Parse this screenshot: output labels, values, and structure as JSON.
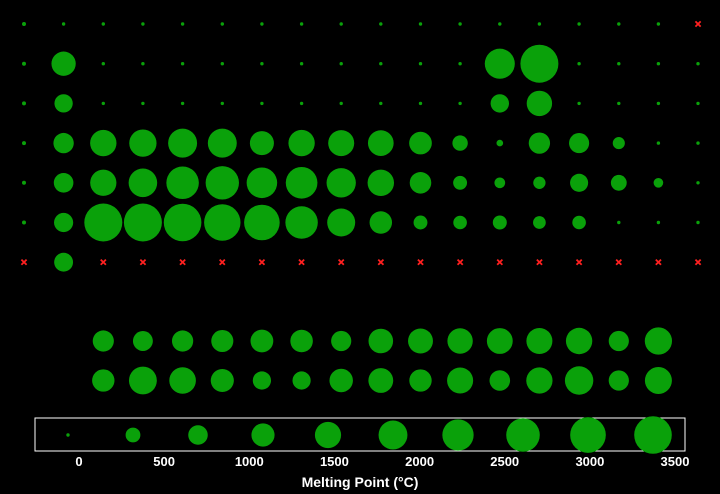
{
  "chart_data": {
    "type": "scatter",
    "title": "",
    "xlabel": "Melting Point (°C)",
    "ylabel": "",
    "x_ticks": [
      0,
      500,
      1000,
      1500,
      2000,
      2500,
      3000,
      3500
    ],
    "grid": false,
    "legend": "bottom",
    "colors": {
      "present": "#0aa10a",
      "missing": "#ff2020",
      "background": "#000000",
      "legend_border": "#ffffff"
    },
    "legend_scale_values": [
      0,
      380,
      760,
      1140,
      1520,
      1900,
      2280,
      2660,
      3040,
      3420
    ],
    "main_table": [
      [
        1,
        0,
        0,
        0,
        0,
        0,
        0,
        0,
        0,
        0,
        0,
        0,
        0,
        0,
        0,
        0,
        0,
        null
      ],
      [
        1,
        1275,
        0,
        0,
        0,
        0,
        0,
        0,
        0,
        0,
        0,
        0,
        2076,
        3500,
        0,
        0,
        0,
        0
      ],
      [
        1,
        650,
        0,
        0,
        0,
        0,
        0,
        0,
        0,
        0,
        0,
        0,
        660,
        1414,
        0,
        0,
        0,
        0
      ],
      [
        1,
        840,
        1541,
        1668,
        1910,
        1907,
        1246,
        1538,
        1495,
        1455,
        1085,
        420,
        30,
        938,
        817,
        221,
        0,
        0
      ],
      [
        1,
        770,
        1526,
        1855,
        2477,
        2623,
        2157,
        2334,
        1964,
        1555,
        962,
        321,
        157,
        232,
        631,
        450,
        114,
        0
      ],
      [
        1,
        727,
        3500,
        3500,
        3422,
        3186,
        3033,
        2466,
        1768,
        1064,
        321,
        304,
        327,
        254,
        302,
        0,
        0,
        0
      ],
      [
        null,
        700,
        null,
        null,
        null,
        null,
        null,
        null,
        null,
        null,
        null,
        null,
        null,
        null,
        null,
        null,
        null,
        null
      ]
    ],
    "f_block": [
      [
        920,
        798,
        931,
        1021,
        1100,
        1072,
        822,
        1313,
        1356,
        1412,
        1474,
        1497,
        1545,
        824,
        1663
      ],
      [
        1050,
        1750,
        1572,
        1135,
        644,
        640,
        1176,
        1340,
        1050,
        1500,
        860,
        1527,
        1827,
        827,
        1627
      ]
    ]
  }
}
